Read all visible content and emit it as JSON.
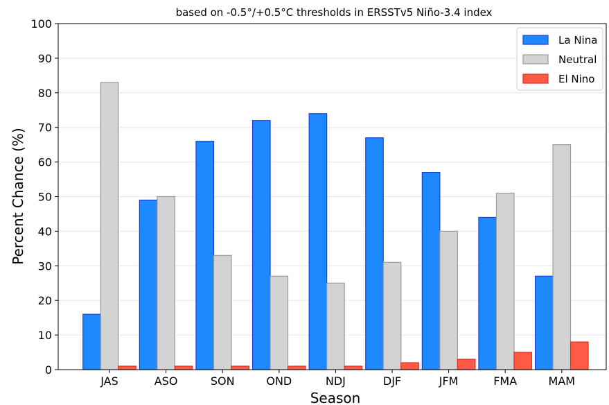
{
  "chart_data": {
    "type": "bar",
    "subtitle": "based on -0.5°/+0.5°C thresholds in ERSSTv5 Niño-3.4 index",
    "xlabel": "Season",
    "ylabel": "Percent Chance (%)",
    "ylim": [
      0,
      100
    ],
    "yticks": [
      0,
      10,
      20,
      30,
      40,
      50,
      60,
      70,
      80,
      90,
      100
    ],
    "grid": "horizontal",
    "legend_position": "top-right",
    "categories": [
      "JAS",
      "ASO",
      "SON",
      "OND",
      "NDJ",
      "DJF",
      "JFM",
      "FMA",
      "MAM"
    ],
    "series": [
      {
        "name": "La Nina",
        "color": "#1e88ff",
        "edge": "#1f3fd6",
        "values": [
          16,
          49,
          66,
          72,
          74,
          67,
          57,
          44,
          27
        ]
      },
      {
        "name": "Neutral",
        "color": "#d3d3d3",
        "edge": "#9a9a9a",
        "values": [
          83,
          50,
          33,
          27,
          25,
          31,
          40,
          51,
          65
        ]
      },
      {
        "name": "El Nino",
        "color": "#ff5a45",
        "edge": "#e03020",
        "values": [
          1,
          1,
          1,
          1,
          1,
          2,
          3,
          5,
          8
        ]
      }
    ]
  }
}
